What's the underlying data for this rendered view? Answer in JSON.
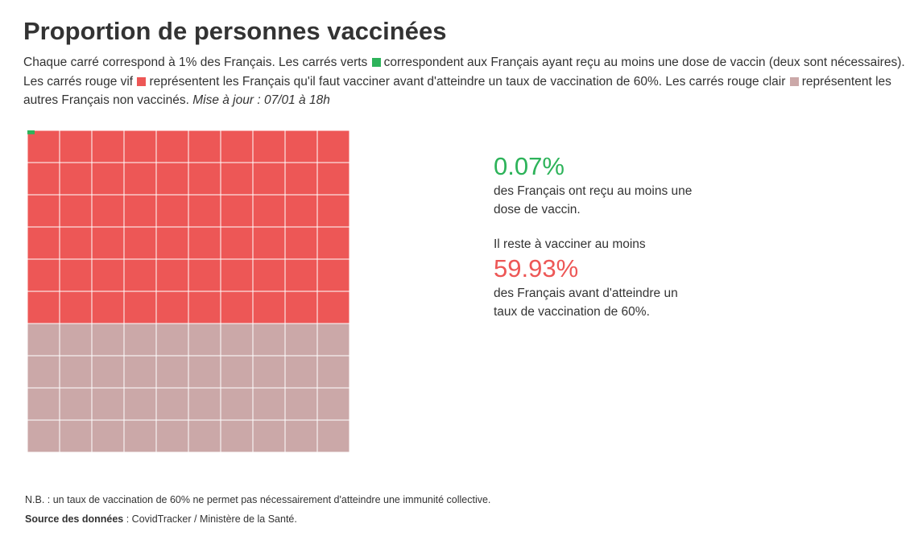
{
  "title": "Proportion de personnes vaccinées",
  "description": {
    "part1": "Chaque carré correspond à 1% des Français. Les carrés verts",
    "part2": "correspondent aux Français ayant reçu au moins une dose de vaccin (deux sont nécessaires). Les carrés rouge vif",
    "part3": "représentent les Français qu'il faut vacciner avant d'atteindre un taux de vaccination de 60%. Les carrés rouge clair",
    "part4": "représentent les autres Français non vaccinés.",
    "update": "Mise à jour : 07/01 à 18h"
  },
  "colors": {
    "vaccinated": "#2db35a",
    "to_vaccinate": "#ed5756",
    "other": "#cba8a8",
    "grid_line": "#ffffff"
  },
  "stats": {
    "vaccinated_value": "0.07%",
    "vaccinated_text": "des Français ont reçu au moins une dose de vaccin.",
    "remaining_intro": "Il reste à vacciner au moins",
    "remaining_value": "59.93%",
    "remaining_text": "des Français avant d'atteindre un taux de vaccination de 60%."
  },
  "footer": {
    "note": "N.B. : un taux de vaccination de 60% ne permet pas nécessairement d'atteindre une immunité collective.",
    "source_label": "Source des données",
    "source_text": " : CovidTracker / Ministère de la Santé."
  },
  "chart_data": {
    "type": "waffle",
    "grid": [
      10,
      10
    ],
    "unit_percent": 1,
    "vaccinated_percent": 0.07,
    "target_percent": 60,
    "to_vaccinate_percent": 59.93,
    "other_percent": 40
  }
}
